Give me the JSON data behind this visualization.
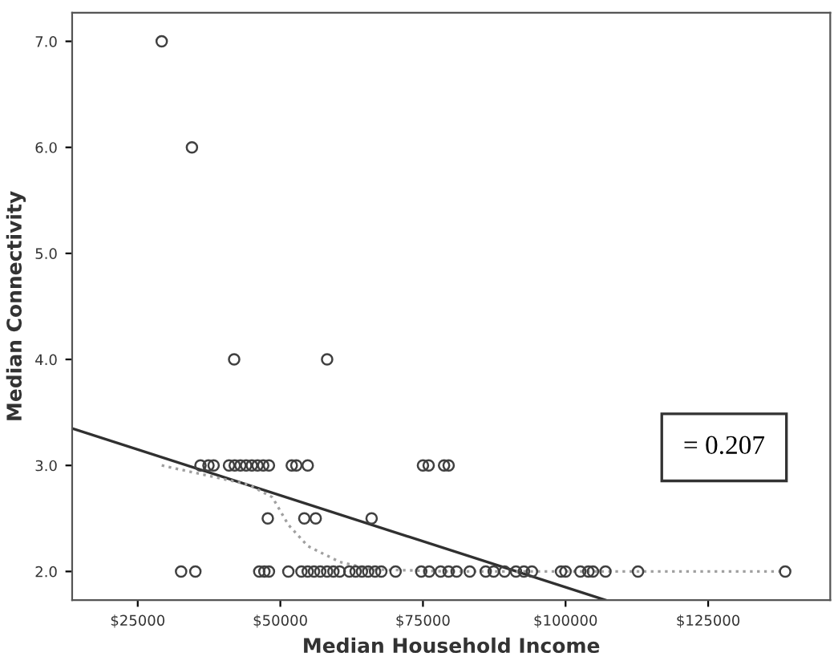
{
  "chart_data": {
    "type": "scatter",
    "xlabel": "Median Household Income",
    "ylabel": "Median Connectivity",
    "xlim": [
      13500,
      146400
    ],
    "ylim": [
      1.73,
      7.27
    ],
    "xticks": [
      {
        "value": 25000,
        "label": "$25000"
      },
      {
        "value": 50000,
        "label": "$50000"
      },
      {
        "value": 75000,
        "label": "$75000"
      },
      {
        "value": 100000,
        "label": "$100000"
      },
      {
        "value": 125000,
        "label": "$125000"
      }
    ],
    "yticks": [
      {
        "value": 2,
        "label": "2.0"
      },
      {
        "value": 3,
        "label": "3.0"
      },
      {
        "value": 4,
        "label": "4.0"
      },
      {
        "value": 5,
        "label": "5.0"
      },
      {
        "value": 6,
        "label": "6.0"
      },
      {
        "value": 7,
        "label": "7.0"
      }
    ],
    "grid": false,
    "legend": false,
    "series": [
      {
        "color": "#404040",
        "marker": "circle",
        "x": [
          29200,
          34500,
          41900,
          58200,
          36000,
          37400,
          38300,
          41000,
          42000,
          43000,
          44000,
          45000,
          46000,
          47000,
          48000,
          52000,
          52800,
          54800,
          75000,
          76000,
          78700,
          79500,
          47800,
          54200,
          56200,
          66000,
          32600,
          35100,
          46300,
          47200,
          48000,
          51400,
          53700,
          54800,
          55900,
          57000,
          58200,
          59300,
          60400,
          62100,
          63200,
          64300,
          65400,
          66600,
          67700,
          70200,
          74700,
          76100,
          78100,
          79500,
          80900,
          83200,
          86000,
          87400,
          89300,
          91300,
          92700,
          94100,
          99200,
          100000,
          102600,
          104000,
          104800,
          107000,
          112700,
          138500
        ],
        "values": [
          7.0,
          6.0,
          4.0,
          4.0,
          3.0,
          3.0,
          3.0,
          3.0,
          3.0,
          3.0,
          3.0,
          3.0,
          3.0,
          3.0,
          3.0,
          3.0,
          3.0,
          3.0,
          3.0,
          3.0,
          3.0,
          3.0,
          2.5,
          2.5,
          2.5,
          2.5,
          2.0,
          2.0,
          2.0,
          2.0,
          2.0,
          2.0,
          2.0,
          2.0,
          2.0,
          2.0,
          2.0,
          2.0,
          2.0,
          2.0,
          2.0,
          2.0,
          2.0,
          2.0,
          2.0,
          2.0,
          2.0,
          2.0,
          2.0,
          2.0,
          2.0,
          2.0,
          2.0,
          2.0,
          2.0,
          2.0,
          2.0,
          2.0,
          2.0,
          2.0,
          2.0,
          2.0,
          2.0,
          2.0,
          2.0,
          2.0
        ]
      },
      {
        "type": "line",
        "color": "#303030",
        "line_style": "solid",
        "x": [
          13500,
          107000
        ],
        "values": [
          3.35,
          1.73
        ]
      },
      {
        "type": "line",
        "color": "#a0a0a0",
        "line_style": "dotted",
        "x": [
          29200,
          44400,
          48600,
          51400,
          54800,
          60400,
          66000,
          80000,
          100000,
          138500
        ],
        "values": [
          3.0,
          2.82,
          2.7,
          2.44,
          2.24,
          2.09,
          2.02,
          2.0,
          2.0,
          2.0
        ]
      }
    ],
    "annotations": [
      "= 0.207"
    ]
  }
}
